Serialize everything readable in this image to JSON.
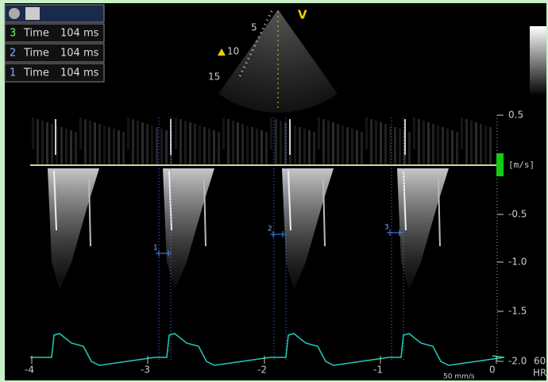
{
  "measurements": [
    {
      "index": "3",
      "label": "Time",
      "value": "104 ms"
    },
    {
      "index": "2",
      "label": "Time",
      "value": "104 ms"
    },
    {
      "index": "1",
      "label": "Time",
      "value": "104 ms"
    }
  ],
  "sector": {
    "mode_label": "V",
    "depth_labels": [
      "5",
      "10",
      "15"
    ]
  },
  "velocity_scale": {
    "labels": [
      "0.5",
      "-0.5",
      "-1.0",
      "-1.5",
      "-2.0"
    ],
    "unit": "[m/s]"
  },
  "time_axis": {
    "labels": [
      "-4",
      "-3",
      "-2",
      "-1",
      "0"
    ],
    "sweep": "50 mm/s"
  },
  "heart_rate": {
    "value": "60",
    "label": "HR"
  },
  "calipers": [
    "1",
    "2",
    "3"
  ]
}
